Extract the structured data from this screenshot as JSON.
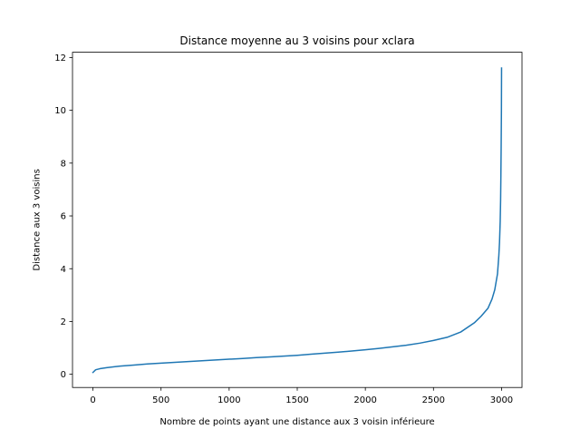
{
  "chart_data": {
    "type": "line",
    "title": "Distance moyenne au 3 voisins pour xclara",
    "xlabel": "Nombre de points ayant une distance aux 3 voisin inférieure",
    "ylabel": "Distance aux 3 voisins",
    "xlim": [
      -150,
      3150
    ],
    "ylim": [
      -0.5,
      12.2
    ],
    "xticks": [
      0,
      500,
      1000,
      1500,
      2000,
      2500,
      3000
    ],
    "xtick_labels": [
      "0",
      "500",
      "1000",
      "1500",
      "2000",
      "2500",
      "3000"
    ],
    "yticks": [
      0,
      2,
      4,
      6,
      8,
      10,
      12
    ],
    "ytick_labels": [
      "0",
      "2",
      "4",
      "6",
      "8",
      "10",
      "12"
    ],
    "grid": false,
    "legend": "none",
    "colors": {
      "series": "#1f77b4",
      "axes": "#000000",
      "background": "#ffffff"
    },
    "series": [
      {
        "x": [
          0,
          20,
          50,
          100,
          200,
          300,
          400,
          500,
          600,
          700,
          800,
          900,
          1000,
          1100,
          1200,
          1300,
          1400,
          1500,
          1600,
          1700,
          1800,
          1900,
          2000,
          2100,
          2200,
          2300,
          2400,
          2500,
          2600,
          2700,
          2800,
          2850,
          2900,
          2930,
          2950,
          2970,
          2980,
          2985,
          2990,
          2993,
          2995,
          2997,
          2999,
          3000
        ],
        "y": [
          0.07,
          0.17,
          0.21,
          0.25,
          0.31,
          0.35,
          0.39,
          0.42,
          0.45,
          0.48,
          0.51,
          0.54,
          0.57,
          0.6,
          0.63,
          0.66,
          0.69,
          0.72,
          0.76,
          0.8,
          0.84,
          0.88,
          0.93,
          0.98,
          1.04,
          1.1,
          1.18,
          1.28,
          1.4,
          1.6,
          1.95,
          2.2,
          2.5,
          2.85,
          3.2,
          3.8,
          4.5,
          5.0,
          5.8,
          6.6,
          7.5,
          8.6,
          10.0,
          11.6
        ]
      }
    ]
  }
}
